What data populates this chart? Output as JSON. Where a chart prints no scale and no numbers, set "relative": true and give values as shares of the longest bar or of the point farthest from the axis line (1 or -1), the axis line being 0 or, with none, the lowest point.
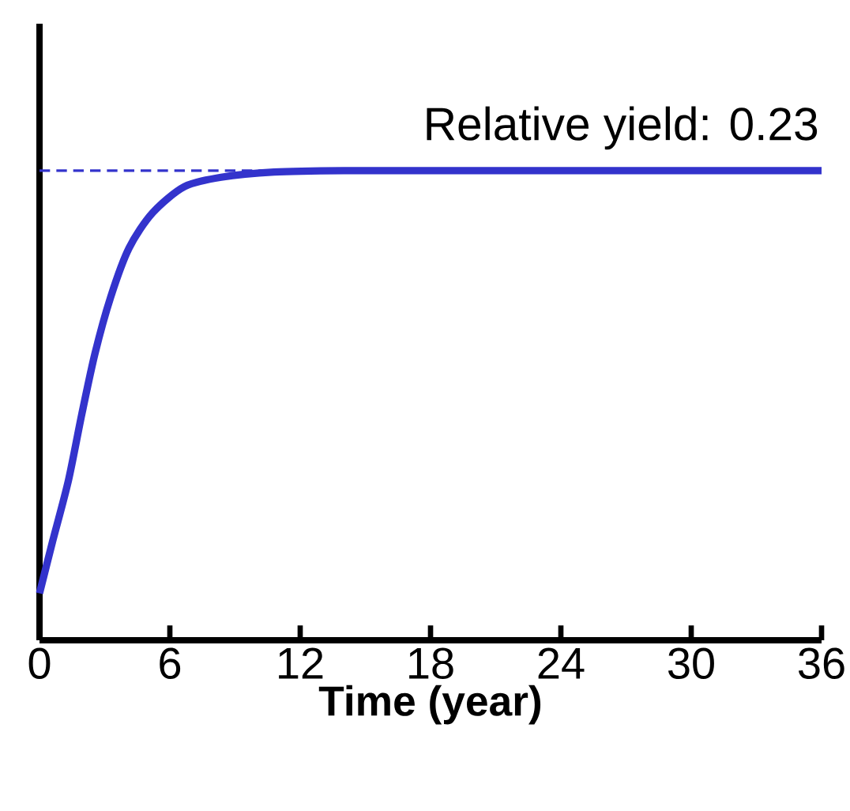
{
  "chart_data": {
    "type": "line",
    "relative": true,
    "xlabel": "Time (year)",
    "x": [
      0,
      0.6,
      1.33,
      1.94,
      2.55,
      3.27,
      4.12,
      5.2,
      6.67,
      8.36,
      10.8,
      14,
      20,
      28,
      36
    ],
    "series": [
      {
        "color": "#3333cc",
        "values": [
          0.1,
          0.21,
          0.34,
          0.48,
          0.61,
          0.73,
          0.835,
          0.91,
          0.966,
          0.986,
          0.997,
          1,
          1,
          1,
          1
        ]
      }
    ],
    "xlim": [
      0,
      36
    ],
    "xticks": [
      0,
      6,
      12,
      18,
      24,
      30,
      36
    ],
    "ref_lines": [
      {
        "axis": "y",
        "value": 1,
        "color": "#3333cc",
        "line_style": "dashed"
      }
    ],
    "annotations": [
      "Relative yield: 0.23"
    ],
    "grid": false,
    "marker": "none",
    "line_style": "solid"
  }
}
